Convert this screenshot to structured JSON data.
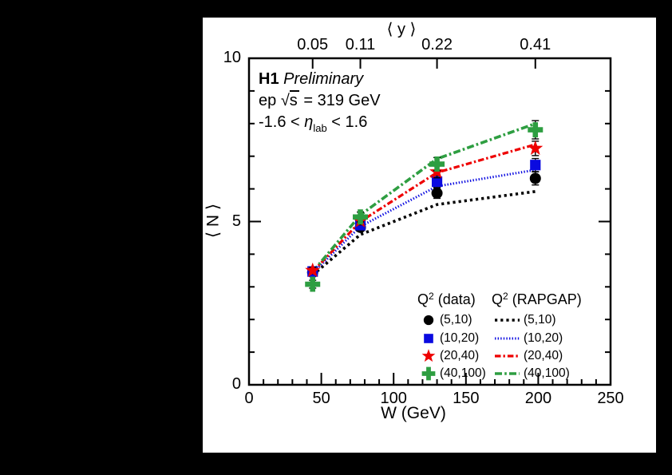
{
  "colors": {
    "background": "#000000",
    "figure_background": "#ffffff",
    "axis": "#000000",
    "q2_5_10": "#000000",
    "q2_10_20": "#0a0ae0",
    "q2_20_40": "#ee0000",
    "q2_40_100": "#2e9e41"
  },
  "annotation": {
    "brand": "H1",
    "status": "Preliminary",
    "beam_line": {
      "prefix": "ep",
      "radical": "√",
      "radicand": "s",
      "suffix": "= 319 GeV"
    },
    "eta_line": {
      "pre": "-1.6 < ",
      "symbol": "η",
      "sub": "lab",
      "post": " < 1.6"
    }
  },
  "chart_data": {
    "type": "scatter",
    "title": "H1 Preliminary: ep sqrt(s) = 319 GeV, -1.6 < eta_lab < 1.6",
    "xlabel": "W (GeV)",
    "ylabel": "⟨ N ⟩",
    "xlim": [
      0,
      250
    ],
    "ylim": [
      0,
      10
    ],
    "x_major_ticks": [
      0,
      50,
      100,
      150,
      200,
      250
    ],
    "x_minor_step": 10,
    "y_major_ticks": [
      0,
      5,
      10
    ],
    "y_minor_step": 1,
    "grid": false,
    "legend_position": "lower right inside",
    "top_axis": {
      "title": "⟨ y ⟩",
      "tick_labels": [
        "0.05",
        "0.11",
        "0.22",
        "0.41"
      ]
    },
    "x": [
      44,
      77,
      130,
      198
    ],
    "data_series": [
      {
        "name": "(5,10)",
        "marker": "circle",
        "color": "#000000",
        "values": [
          3.44,
          4.82,
          5.87,
          6.32
        ],
        "errors": [
          0.1,
          0.1,
          0.16,
          0.2
        ]
      },
      {
        "name": "(10,20)",
        "marker": "square",
        "color": "#0a0ae0",
        "values": [
          3.47,
          4.89,
          6.22,
          6.73
        ],
        "errors": [
          0.1,
          0.1,
          0.16,
          0.2
        ]
      },
      {
        "name": "(20,40)",
        "marker": "star",
        "color": "#ee0000",
        "values": [
          3.5,
          5.02,
          6.52,
          7.24
        ],
        "errors": [
          0.1,
          0.12,
          0.18,
          0.22
        ]
      },
      {
        "name": "(40,100)",
        "marker": "cross",
        "color": "#2e9e41",
        "values": [
          3.08,
          5.14,
          6.76,
          7.81
        ],
        "errors": [
          0.12,
          0.15,
          0.2,
          0.28
        ]
      }
    ],
    "model_series": [
      {
        "name": "(5,10)",
        "line": "coarse-dot",
        "color": "#000000",
        "values": [
          3.36,
          4.6,
          5.52,
          5.92
        ]
      },
      {
        "name": "(10,20)",
        "line": "fine-dot",
        "color": "#0a0ae0",
        "values": [
          3.42,
          4.85,
          6.08,
          6.58
        ]
      },
      {
        "name": "(20,40)",
        "line": "dash-dot",
        "color": "#ee0000",
        "values": [
          3.46,
          5.0,
          6.5,
          7.36
        ]
      },
      {
        "name": "(40,100)",
        "line": "long-dash-dot",
        "color": "#2e9e41",
        "values": [
          3.46,
          5.2,
          6.92,
          8.0
        ]
      }
    ],
    "legend": {
      "data_header": {
        "base": "Q",
        "sup": "2",
        "rest": " (data)"
      },
      "model_header": {
        "base": "Q",
        "sup": "2",
        "rest": " (RAPGAP)"
      }
    }
  }
}
